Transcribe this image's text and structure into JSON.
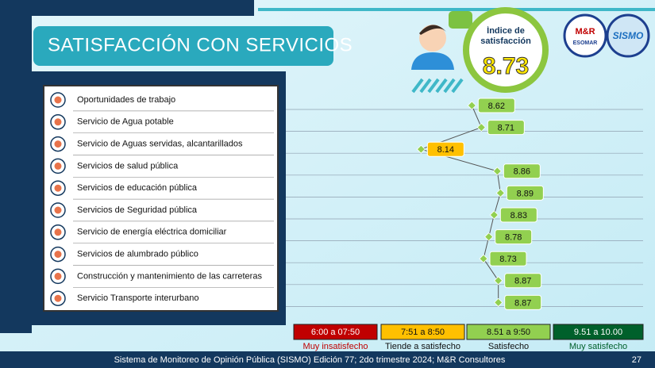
{
  "chart_data": {
    "type": "line",
    "orientation": "horizontal",
    "title": "SATISFACCIÓN CON SERVICIOS",
    "categories": [
      "Oportunidades de trabajo",
      "Servicio de Agua potable",
      "Servicio de Aguas servidas, alcantarillados",
      "Servicios de salud pública",
      "Servicios de educación pública",
      "Servicios de Seguridad pública",
      "Servicio de energía eléctrica domiciliar",
      "Servicios de alumbrado público",
      "Construcción y mantenimiento de las carreteras",
      "Servicio Transporte interurbano"
    ],
    "values": [
      8.62,
      8.71,
      8.14,
      8.86,
      8.89,
      8.83,
      8.78,
      8.73,
      8.87,
      8.87
    ],
    "point_colors": [
      "#92d050",
      "#92d050",
      "#ffc000",
      "#92d050",
      "#92d050",
      "#92d050",
      "#92d050",
      "#92d050",
      "#92d050",
      "#92d050"
    ],
    "color": "#555555",
    "xlim": [
      7.5,
      9.3
    ],
    "index": {
      "label": "Índice de satisfacción",
      "value": 8.73
    },
    "legend": [
      {
        "range": "6:00 a 07:50",
        "label": "Muy insatisfecho",
        "color": "#c00000"
      },
      {
        "range": "7:51 a 8:50",
        "label": "Tiende a satisfecho",
        "color": "#ffc000"
      },
      {
        "range": "8.51 a 9:50",
        "label": "Satisfecho",
        "color": "#92d050"
      },
      {
        "range": "9.51 a 10.00",
        "label": "Muy satisfecho",
        "color": "#00602b"
      }
    ]
  },
  "logos": [
    "M&R",
    "ESOMAR",
    "SISMO"
  ],
  "footer": "Sistema de Monitoreo de Opinión Pública (SISMO) Edición 77; 2do trimestre 2024; M&R Consultores",
  "page_number": "27"
}
